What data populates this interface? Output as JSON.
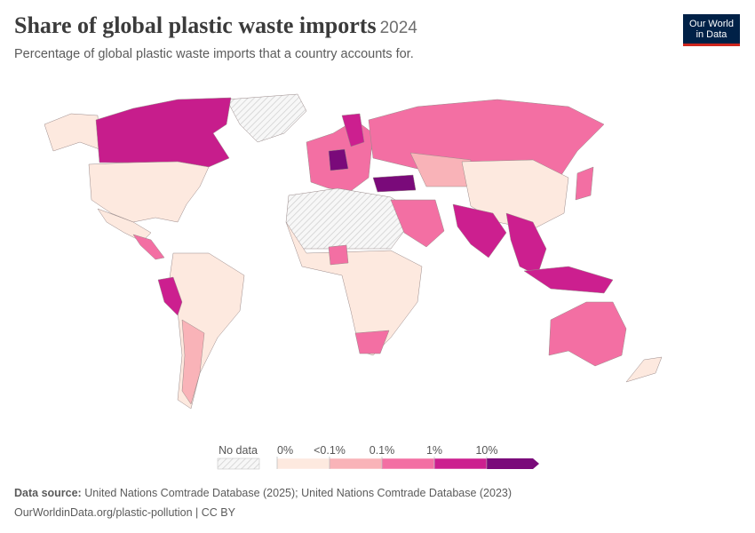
{
  "header": {
    "title": "Share of global plastic waste imports",
    "year": "2024",
    "subtitle": "Percentage of global plastic waste imports that a country accounts for.",
    "logo": [
      "Our World",
      "in Data"
    ]
  },
  "legend": {
    "no_data": "No data",
    "ticks": [
      "0%",
      "<0.1%",
      "0.1%",
      "1%",
      "10%"
    ],
    "colors": [
      "#fde9df",
      "#f9b3b8",
      "#f36fa3",
      "#cc1f8f",
      "#7a0a7a"
    ]
  },
  "footer": {
    "source_label": "Data source:",
    "source": "United Nations Comtrade Database (2025); United Nations Comtrade Database (2023)",
    "url": "OurWorldinData.org/plastic-pollution | CC BY"
  }
}
